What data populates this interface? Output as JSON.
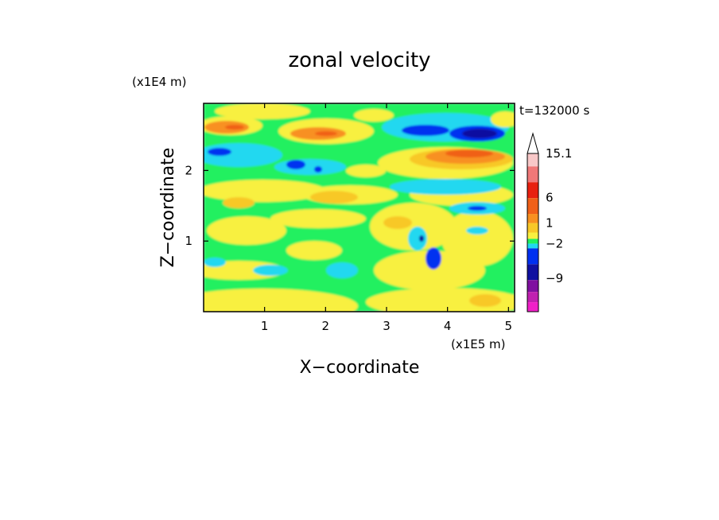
{
  "palette": {
    "magenta": "#f020c8",
    "purple_magenta": "#c020b0",
    "purple": "#8010a0",
    "navy": "#1010a0",
    "blue": "#0030f0",
    "cyan": "#20d8f0",
    "green": "#20f060",
    "yellow": "#f8f040",
    "gold": "#f8c828",
    "orange": "#f89020",
    "dark_orange": "#f06018",
    "red": "#e82010",
    "salmon": "#f07878",
    "pink": "#f8c8c8"
  },
  "chart_data": {
    "type": "heatmap",
    "title": "zonal velocity",
    "xlabel": "X−coordinate",
    "ylabel": "Z−coordinate",
    "x_unit": "(x1E5 m)",
    "y_unit": "(x1E4 m)",
    "time_label": "t=132000 s",
    "xlim": [
      0,
      5.1
    ],
    "ylim": [
      0,
      2.95
    ],
    "x_ticks": [
      1,
      2,
      3,
      4,
      5
    ],
    "x_tick_labels": [
      "1",
      "2",
      "3",
      "4",
      "5"
    ],
    "y_ticks": [
      1,
      2
    ],
    "y_tick_labels": [
      "1",
      "2"
    ],
    "colorbar": {
      "labels": [
        {
          "text": "15.1",
          "level": 15.1
        },
        {
          "text": "6",
          "level": 6
        },
        {
          "text": "1",
          "level": 1
        },
        {
          "text": "−2",
          "level": -2
        },
        {
          "text": "−9",
          "level": -9
        }
      ],
      "extend": "max"
    },
    "bands": [
      {
        "z": [
          2.6,
          2.95
        ],
        "pattern": "orange-yellow"
      },
      {
        "z": [
          2.0,
          2.6
        ],
        "pattern": "green-cyan with blue cores"
      },
      {
        "z": [
          1.7,
          2.0
        ],
        "pattern": "yellow-orange"
      },
      {
        "z": [
          0.6,
          1.7
        ],
        "pattern": "green-yellow mix"
      },
      {
        "z": [
          0.0,
          0.6
        ],
        "pattern": "yellow-green"
      }
    ],
    "features": [
      {
        "name": "upper-right negative jet",
        "x": [
          3.2,
          4.9
        ],
        "z": [
          2.45,
          2.65
        ],
        "level": -9
      },
      {
        "name": "right positive jet",
        "x": [
          3.4,
          5.0
        ],
        "z": [
          1.95,
          2.35
        ],
        "level": 6
      },
      {
        "name": "left negative core",
        "x": [
          0.0,
          0.35
        ],
        "z": [
          2.2,
          2.35
        ],
        "level": -6
      },
      {
        "name": "central negative core",
        "x": [
          1.3,
          1.7
        ],
        "z": [
          2.05,
          2.2
        ],
        "level": -6
      }
    ]
  }
}
